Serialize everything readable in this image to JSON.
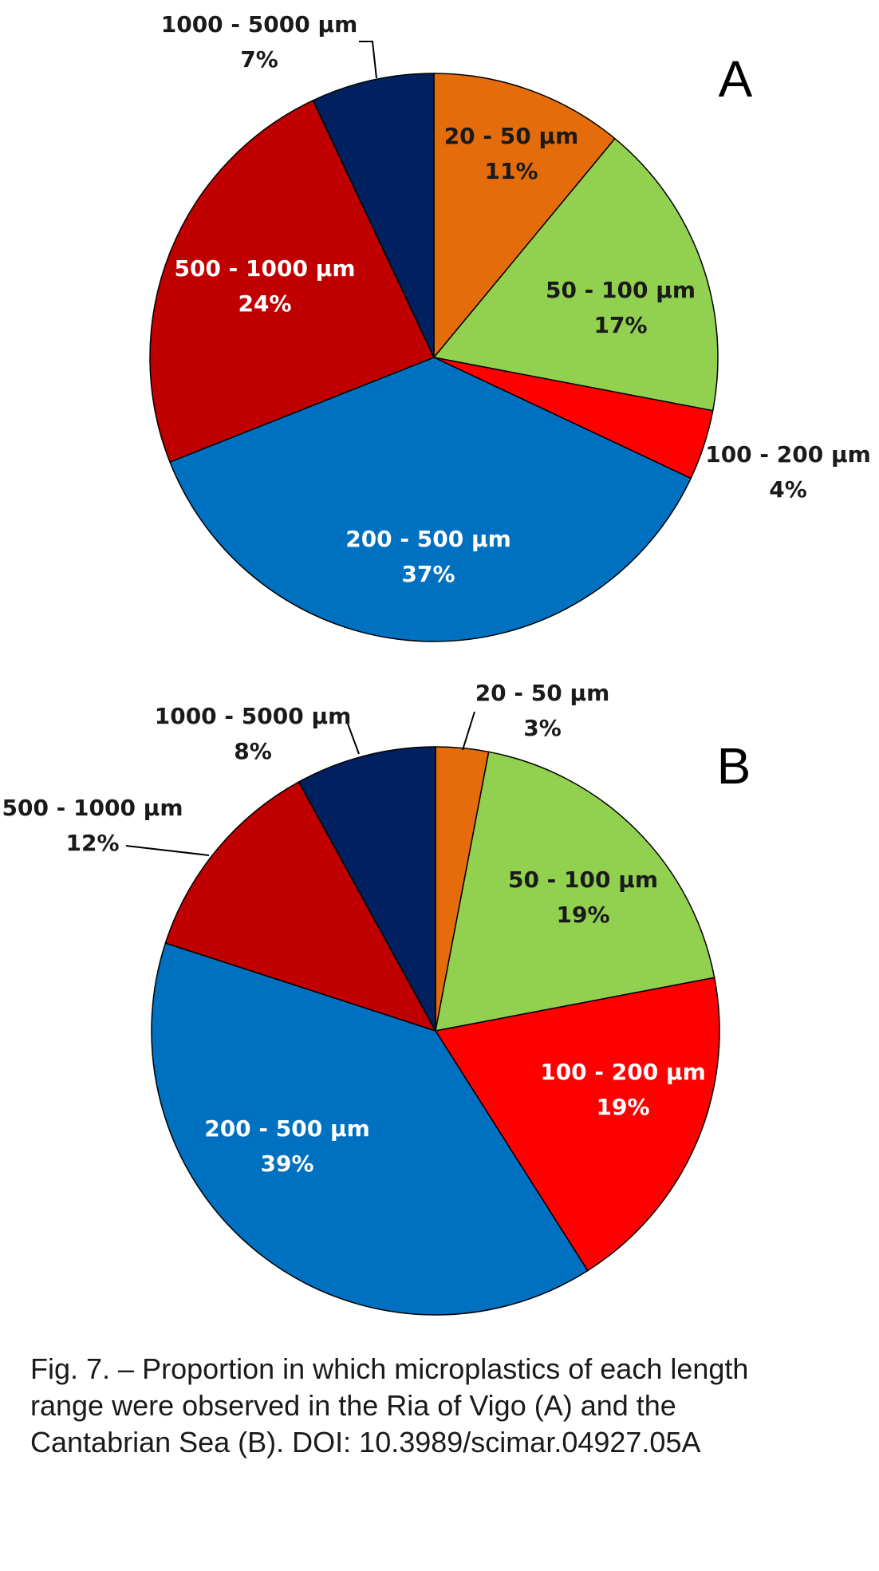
{
  "chart_data": [
    {
      "type": "pie",
      "panel": "A",
      "slices": [
        {
          "label": "20 - 50 µm",
          "percent_label": "11%",
          "value": 11,
          "color": "#E46C0A",
          "text_color": "#1a1a1a"
        },
        {
          "label": "50 - 100 µm",
          "percent_label": "17%",
          "value": 17,
          "color": "#92D050",
          "text_color": "#1a1a1a"
        },
        {
          "label": "100 - 200 µm",
          "percent_label": "4%",
          "value": 4,
          "color": "#FF0000",
          "text_color": "#1a1a1a"
        },
        {
          "label": "200 - 500 µm",
          "percent_label": "37%",
          "value": 37,
          "color": "#0070C0",
          "text_color": "#ffffff"
        },
        {
          "label": "500 - 1000 µm",
          "percent_label": "24%",
          "value": 24,
          "color": "#C00000",
          "text_color": "#ffffff"
        },
        {
          "label": "1000 - 5000 µm",
          "percent_label": "7%",
          "value": 7,
          "color": "#002060",
          "text_color": "#1a1a1a"
        }
      ]
    },
    {
      "type": "pie",
      "panel": "B",
      "slices": [
        {
          "label": "20 - 50 µm",
          "percent_label": "3%",
          "value": 3,
          "color": "#E46C0A",
          "text_color": "#1a1a1a"
        },
        {
          "label": "50 - 100 µm",
          "percent_label": "19%",
          "value": 19,
          "color": "#92D050",
          "text_color": "#1a1a1a"
        },
        {
          "label": "100 - 200 µm",
          "percent_label": "19%",
          "value": 19,
          "color": "#FF0000",
          "text_color": "#ffffff"
        },
        {
          "label": "200 - 500 µm",
          "percent_label": "39%",
          "value": 39,
          "color": "#0070C0",
          "text_color": "#ffffff"
        },
        {
          "label": "500 - 1000 µm",
          "percent_label": "12%",
          "value": 12,
          "color": "#C00000",
          "text_color": "#1a1a1a"
        },
        {
          "label": "1000 - 5000 µm",
          "percent_label": "8%",
          "value": 8,
          "color": "#002060",
          "text_color": "#1a1a1a"
        }
      ]
    }
  ],
  "caption": {
    "line1": "Fig. 7. – Proportion in which microplastics of each length",
    "line2": "range were observed in the Ria of Vigo (A) and the",
    "line3": "Cantabrian Sea (B). DOI: 10.3989/scimar.04927.05A"
  }
}
